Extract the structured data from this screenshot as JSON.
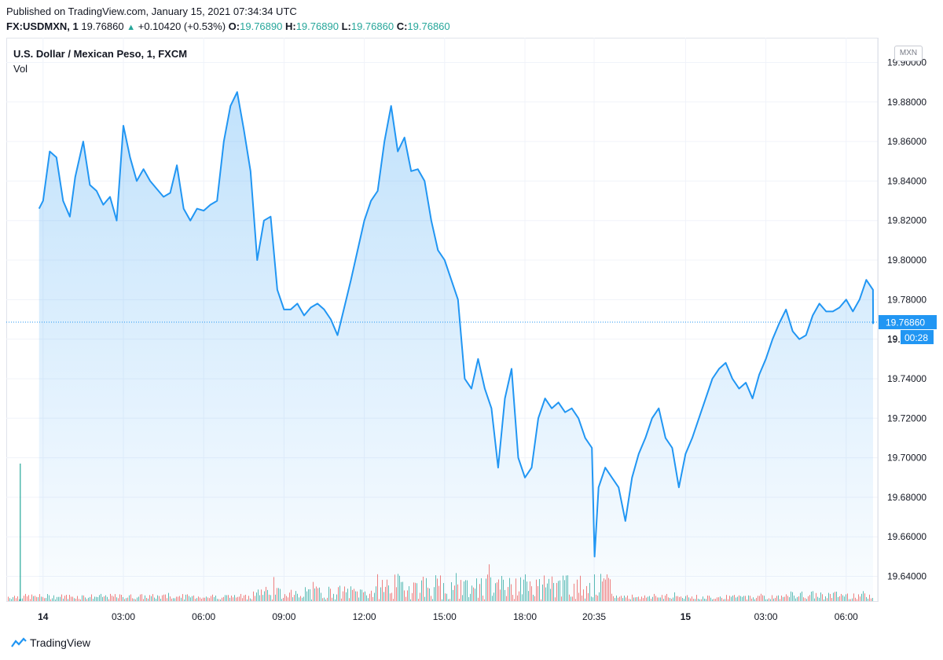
{
  "header": {
    "published": "Published on TradingView.com, January 15, 2021 07:34:34 UTC",
    "symbol": "FX:USDMXN, 1",
    "last": "19.76860",
    "change": "+0.10420 (+0.53%)",
    "o_label": "O:",
    "o_value": "19.76890",
    "h_label": "H:",
    "h_value": "19.76890",
    "l_label": "L:",
    "l_value": "19.76860",
    "c_label": "C:",
    "c_value": "19.76860"
  },
  "legend": {
    "title": "U.S. Dollar / Mexican Peso, 1, FXCM",
    "vol": "Vol"
  },
  "currency_button": "MXN",
  "footer": {
    "brand": "TradingView"
  },
  "colors": {
    "line": "#2196f3",
    "up": "#26a69a",
    "down": "#ef5350",
    "badge": "#2196f3"
  },
  "chart_data": {
    "type": "area",
    "title": "U.S. Dollar / Mexican Peso, 1, FXCM",
    "y_ticks": [
      "19.90000",
      "19.88000",
      "19.86000",
      "19.84000",
      "19.82000",
      "19.80000",
      "19.78000",
      "19.76000",
      "19.74000",
      "19.72000",
      "19.70000",
      "19.68000",
      "19.66000",
      "19.64000"
    ],
    "ylim": [
      19.6275,
      19.9125
    ],
    "x_ticks": [
      {
        "label": "14",
        "t": 0.0,
        "day": true
      },
      {
        "label": "03:00",
        "t": 3.0
      },
      {
        "label": "06:00",
        "t": 6.0
      },
      {
        "label": "09:00",
        "t": 9.0
      },
      {
        "label": "12:00",
        "t": 12.0
      },
      {
        "label": "15:00",
        "t": 15.0
      },
      {
        "label": "18:00",
        "t": 18.0
      },
      {
        "label": "20:35",
        "t": 20.583
      },
      {
        "label": "15",
        "t": 24.0,
        "day": true
      },
      {
        "label": "03:00",
        "t": 27.0
      },
      {
        "label": "06:00",
        "t": 30.0
      }
    ],
    "last_price": 19.7686,
    "last_price_label": "19.76860",
    "countdown_label": "00:28",
    "partial_tick_label": "19.",
    "x": [
      -0.15,
      0.0,
      0.25,
      0.5,
      0.75,
      1.0,
      1.2,
      1.5,
      1.75,
      2.0,
      2.25,
      2.5,
      2.75,
      3.0,
      3.25,
      3.5,
      3.75,
      4.0,
      4.25,
      4.5,
      4.75,
      5.0,
      5.25,
      5.5,
      5.75,
      6.0,
      6.25,
      6.5,
      6.75,
      7.0,
      7.25,
      7.5,
      7.75,
      8.0,
      8.25,
      8.5,
      8.75,
      9.0,
      9.25,
      9.5,
      9.75,
      10.0,
      10.25,
      10.5,
      10.75,
      11.0,
      11.25,
      11.5,
      11.75,
      12.0,
      12.25,
      12.5,
      12.75,
      13.0,
      13.25,
      13.5,
      13.75,
      14.0,
      14.25,
      14.5,
      14.75,
      15.0,
      15.25,
      15.5,
      15.75,
      16.0,
      16.25,
      16.5,
      16.75,
      17.0,
      17.25,
      17.5,
      17.75,
      18.0,
      18.25,
      18.5,
      18.75,
      19.0,
      19.25,
      19.5,
      19.75,
      20.0,
      20.25,
      20.5,
      20.6,
      20.75,
      21.0,
      21.25,
      21.5,
      21.75,
      22.0,
      22.25,
      22.5,
      22.75,
      23.0,
      23.25,
      23.5,
      23.75,
      24.0,
      24.25,
      24.5,
      24.75,
      25.0,
      25.25,
      25.5,
      25.75,
      26.0,
      26.25,
      26.5,
      26.75,
      27.0,
      27.25,
      27.5,
      27.75,
      28.0,
      28.25,
      28.5,
      28.75,
      29.0,
      29.25,
      29.5,
      29.75,
      30.0,
      30.25,
      30.5,
      30.75,
      31.0,
      31.25,
      31.45,
      31.55
    ],
    "values": [
      19.826,
      19.83,
      19.855,
      19.852,
      19.83,
      19.822,
      19.842,
      19.86,
      19.838,
      19.835,
      19.828,
      19.832,
      19.82,
      19.868,
      19.852,
      19.84,
      19.846,
      19.84,
      19.836,
      19.832,
      19.834,
      19.848,
      19.826,
      19.82,
      19.826,
      19.825,
      19.828,
      19.83,
      19.86,
      19.878,
      19.885,
      19.866,
      19.845,
      19.8,
      19.82,
      19.822,
      19.785,
      19.775,
      19.775,
      19.778,
      19.772,
      19.776,
      19.778,
      19.775,
      19.77,
      19.762,
      19.776,
      19.79,
      19.805,
      19.82,
      19.83,
      19.835,
      19.86,
      19.878,
      19.855,
      19.862,
      19.845,
      19.846,
      19.84,
      19.82,
      19.805,
      19.8,
      19.79,
      19.78,
      19.74,
      19.735,
      19.75,
      19.735,
      19.725,
      19.695,
      19.73,
      19.745,
      19.7,
      19.69,
      19.695,
      19.72,
      19.73,
      19.725,
      19.728,
      19.723,
      19.725,
      19.72,
      19.71,
      19.705,
      19.65,
      19.685,
      19.695,
      19.69,
      19.685,
      19.668,
      19.69,
      19.702,
      19.71,
      19.72,
      19.725,
      19.71,
      19.705,
      19.685,
      19.702,
      19.71,
      19.72,
      19.73,
      19.74,
      19.745,
      19.748,
      19.74,
      19.735,
      19.738,
      19.73,
      19.742,
      19.75,
      19.76,
      19.768,
      19.775,
      19.764,
      19.76,
      19.762,
      19.772,
      19.778,
      19.774,
      19.774,
      19.776,
      19.78,
      19.774,
      19.78,
      19.79,
      19.785,
      19.775,
      19.768,
      19.7686
    ]
  }
}
